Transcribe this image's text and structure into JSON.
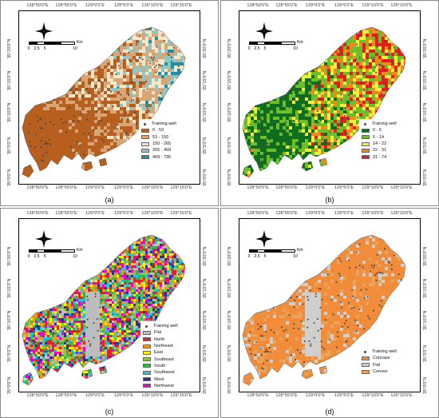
{
  "colors": {
    "well_dot": "#444444",
    "background": "#ffffff"
  },
  "axes": {
    "top_x_ticks": [
      "128°50'0\"E",
      "128°55'0\"E",
      "129°0'0\"E",
      "129°5'0\"E",
      "129°10'0\"E",
      "129°15'0\"E"
    ],
    "bottom_x_ticks": [
      "128°50'0\"E",
      "128°55'0\"E",
      "129°0'0\"E",
      "129°5'0\"E",
      "129°10'0\"E",
      "129°15'0\"E"
    ],
    "y_ticks": [
      "35°20'0\"N",
      "35°15'0\"N",
      "35°10'0\"N",
      "35°5'0\"N",
      "35°0'0\"N"
    ]
  },
  "scale_bar": {
    "ticks": [
      "0",
      "2.5",
      "5",
      "10"
    ],
    "unit": "Km"
  },
  "panels": [
    {
      "label": "(a)",
      "theme": "elevation",
      "legend": {
        "well_label": "Training well",
        "classes": [
          {
            "label": "0 - 53",
            "color": "#b75f1f"
          },
          {
            "label": "53 - 150",
            "color": "#d9a574"
          },
          {
            "label": "150 - 265",
            "color": "#f5e6c8"
          },
          {
            "label": "265 - 409",
            "color": "#8fc6c6"
          },
          {
            "label": "409 - 795",
            "color": "#1f8fa3"
          }
        ]
      }
    },
    {
      "label": "(b)",
      "theme": "slope",
      "legend": {
        "well_label": "Training well",
        "classes": [
          {
            "label": "0 - 5",
            "color": "#0f6d1f"
          },
          {
            "label": "5 - 14",
            "color": "#6cbf2a"
          },
          {
            "label": "14 - 22",
            "color": "#f2ef3a"
          },
          {
            "label": "22 - 31",
            "color": "#f08a1c"
          },
          {
            "label": "31 - 74",
            "color": "#e02020"
          }
        ]
      }
    },
    {
      "label": "(c)",
      "theme": "aspect",
      "legend": {
        "well_label": "Training well",
        "classes": [
          {
            "label": "Flat",
            "color": "#bdbdbd"
          },
          {
            "label": "North",
            "color": "#ee1c24"
          },
          {
            "label": "Northeast",
            "color": "#f7941d"
          },
          {
            "label": "East",
            "color": "#fff200"
          },
          {
            "label": "Southeast",
            "color": "#8dc63f"
          },
          {
            "label": "South",
            "color": "#39b54a"
          },
          {
            "label": "Southwest",
            "color": "#27c4d8"
          },
          {
            "label": "West",
            "color": "#2e3192"
          },
          {
            "label": "Northwest",
            "color": "#ec00d0"
          }
        ]
      }
    },
    {
      "label": "(d)",
      "theme": "curvature",
      "legend": {
        "well_label": "Training well",
        "classes": [
          {
            "label": "Concave",
            "color": "#f08c3a"
          },
          {
            "label": "Flat",
            "color": "#cfcfcf"
          },
          {
            "label": "Convex",
            "color": "#e9a45a"
          }
        ]
      }
    }
  ]
}
